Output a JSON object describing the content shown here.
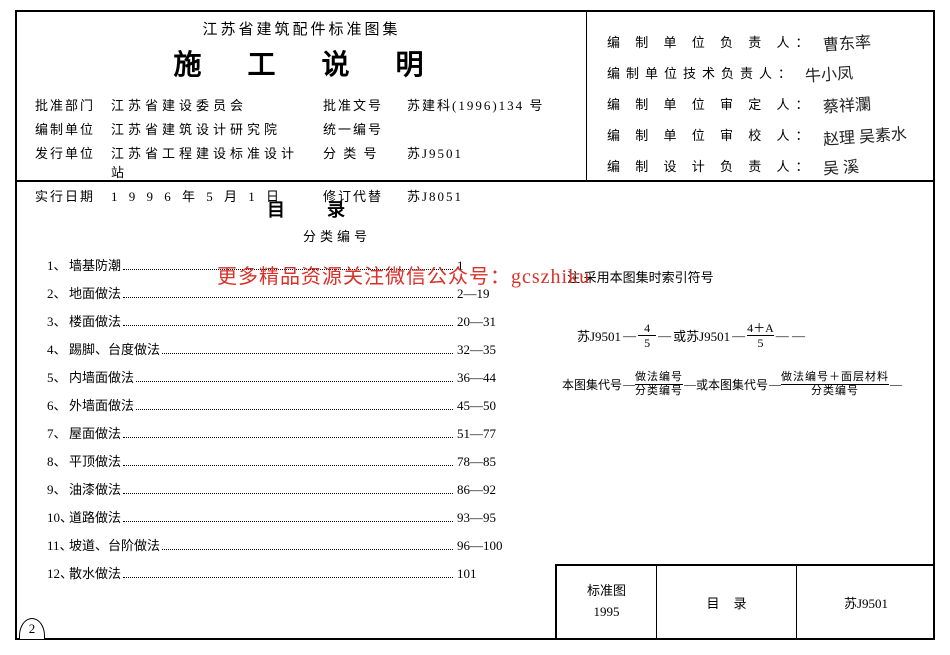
{
  "colors": {
    "text": "#000000",
    "bg": "#ffffff",
    "watermark": "#d8322a",
    "border": "#000000"
  },
  "header": {
    "top_title": "江苏省建筑配件标准图集",
    "big_title": "施工说明",
    "rows": [
      {
        "lab": "批准部门",
        "val": "江苏省建设委员会",
        "lab2": "批准文号",
        "val2": "苏建科(1996)134 号"
      },
      {
        "lab": "编制单位",
        "val": "江苏省建筑设计研究院",
        "lab2": "统一编号",
        "val2": ""
      },
      {
        "lab": "发行单位",
        "val": "江苏省工程建设标准设计站",
        "lab2": "分 类 号",
        "val2": "苏J9501"
      },
      {
        "lab": "实行日期",
        "val": "1 9 9 6 年 5 月 1 日",
        "lab2": "修订代替",
        "val2": "苏J8051"
      }
    ]
  },
  "signers": [
    {
      "label": "编 制 单 位 负 责 人：",
      "sig": "曹东率"
    },
    {
      "label": "编制单位技术负责人：",
      "sig": "牛小凤"
    },
    {
      "label": "编 制 单 位 审 定 人：",
      "sig": "蔡祥瀾"
    },
    {
      "label": "编 制 单 位 审 校 人：",
      "sig": "赵理 吴素水"
    },
    {
      "label": "编 制 设 计 负 责 人：",
      "sig": "吴 溪"
    }
  ],
  "toc": {
    "title": "目录",
    "sub": "分类编号",
    "items": [
      {
        "idx": "1、",
        "name": "墙基防潮",
        "pages": "1"
      },
      {
        "idx": "2、",
        "name": "地面做法",
        "pages": "2—19"
      },
      {
        "idx": "3、",
        "name": "楼面做法",
        "pages": "20—31"
      },
      {
        "idx": "4、",
        "name": "踢脚、台度做法",
        "pages": "32—35"
      },
      {
        "idx": "5、",
        "name": "内墙面做法",
        "pages": "36—44"
      },
      {
        "idx": "6、",
        "name": "外墙面做法",
        "pages": "45—50"
      },
      {
        "idx": "7、",
        "name": "屋面做法",
        "pages": "51—77"
      },
      {
        "idx": "8、",
        "name": "平顶做法",
        "pages": "78—85"
      },
      {
        "idx": "9、",
        "name": "油漆做法",
        "pages": "86—92"
      },
      {
        "idx": "10、",
        "name": "道路做法",
        "pages": "93—95"
      },
      {
        "idx": "11、",
        "name": "坡道、台阶做法",
        "pages": "96—100"
      },
      {
        "idx": "12、",
        "name": "散水做法",
        "pages": "101"
      }
    ]
  },
  "watermark": "更多精品资源关注微信公众号：gcszhiku",
  "note": "注:采用本图集时索引符号",
  "ex1": {
    "pref": "苏J9501",
    "f1_num": "4",
    "f1_den": "5",
    "mid": "或苏J9501",
    "f2_num": "4＋A",
    "f2_den": "5"
  },
  "ex2": {
    "pref": "本图集代号",
    "f1_num": "做法编号",
    "f1_den": "分类编号",
    "mid": "或本图集代号",
    "f2_num": "做法编号＋面层材料",
    "f2_den": "分类编号"
  },
  "bottom": {
    "c1a": "标准图",
    "c1b": "1995",
    "c2": "目录",
    "c3": "苏J9501"
  },
  "page_tab": "2"
}
